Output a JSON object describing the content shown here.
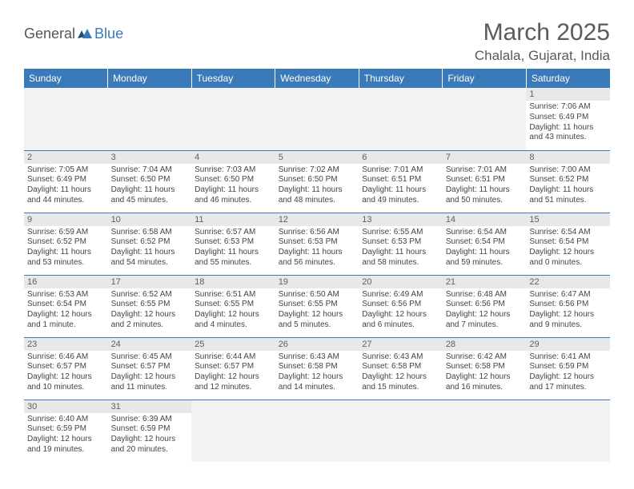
{
  "logo": {
    "general": "General",
    "blue": "Blue"
  },
  "title": "March 2025",
  "location": "Chalala, Gujarat, India",
  "day_header_bg": "#3a7ab8",
  "day_header_fg": "#ffffff",
  "cell_border_color": "#3a7ab8",
  "daynum_bg": "#e8e8e8",
  "empty_bg": "#f3f3f3",
  "days": [
    "Sunday",
    "Monday",
    "Tuesday",
    "Wednesday",
    "Thursday",
    "Friday",
    "Saturday"
  ],
  "weeks": [
    [
      null,
      null,
      null,
      null,
      null,
      null,
      {
        "n": "1",
        "sr": "Sunrise: 7:06 AM",
        "ss": "Sunset: 6:49 PM",
        "d1": "Daylight: 11 hours",
        "d2": "and 43 minutes."
      }
    ],
    [
      {
        "n": "2",
        "sr": "Sunrise: 7:05 AM",
        "ss": "Sunset: 6:49 PM",
        "d1": "Daylight: 11 hours",
        "d2": "and 44 minutes."
      },
      {
        "n": "3",
        "sr": "Sunrise: 7:04 AM",
        "ss": "Sunset: 6:50 PM",
        "d1": "Daylight: 11 hours",
        "d2": "and 45 minutes."
      },
      {
        "n": "4",
        "sr": "Sunrise: 7:03 AM",
        "ss": "Sunset: 6:50 PM",
        "d1": "Daylight: 11 hours",
        "d2": "and 46 minutes."
      },
      {
        "n": "5",
        "sr": "Sunrise: 7:02 AM",
        "ss": "Sunset: 6:50 PM",
        "d1": "Daylight: 11 hours",
        "d2": "and 48 minutes."
      },
      {
        "n": "6",
        "sr": "Sunrise: 7:01 AM",
        "ss": "Sunset: 6:51 PM",
        "d1": "Daylight: 11 hours",
        "d2": "and 49 minutes."
      },
      {
        "n": "7",
        "sr": "Sunrise: 7:01 AM",
        "ss": "Sunset: 6:51 PM",
        "d1": "Daylight: 11 hours",
        "d2": "and 50 minutes."
      },
      {
        "n": "8",
        "sr": "Sunrise: 7:00 AM",
        "ss": "Sunset: 6:52 PM",
        "d1": "Daylight: 11 hours",
        "d2": "and 51 minutes."
      }
    ],
    [
      {
        "n": "9",
        "sr": "Sunrise: 6:59 AM",
        "ss": "Sunset: 6:52 PM",
        "d1": "Daylight: 11 hours",
        "d2": "and 53 minutes."
      },
      {
        "n": "10",
        "sr": "Sunrise: 6:58 AM",
        "ss": "Sunset: 6:52 PM",
        "d1": "Daylight: 11 hours",
        "d2": "and 54 minutes."
      },
      {
        "n": "11",
        "sr": "Sunrise: 6:57 AM",
        "ss": "Sunset: 6:53 PM",
        "d1": "Daylight: 11 hours",
        "d2": "and 55 minutes."
      },
      {
        "n": "12",
        "sr": "Sunrise: 6:56 AM",
        "ss": "Sunset: 6:53 PM",
        "d1": "Daylight: 11 hours",
        "d2": "and 56 minutes."
      },
      {
        "n": "13",
        "sr": "Sunrise: 6:55 AM",
        "ss": "Sunset: 6:53 PM",
        "d1": "Daylight: 11 hours",
        "d2": "and 58 minutes."
      },
      {
        "n": "14",
        "sr": "Sunrise: 6:54 AM",
        "ss": "Sunset: 6:54 PM",
        "d1": "Daylight: 11 hours",
        "d2": "and 59 minutes."
      },
      {
        "n": "15",
        "sr": "Sunrise: 6:54 AM",
        "ss": "Sunset: 6:54 PM",
        "d1": "Daylight: 12 hours",
        "d2": "and 0 minutes."
      }
    ],
    [
      {
        "n": "16",
        "sr": "Sunrise: 6:53 AM",
        "ss": "Sunset: 6:54 PM",
        "d1": "Daylight: 12 hours",
        "d2": "and 1 minute."
      },
      {
        "n": "17",
        "sr": "Sunrise: 6:52 AM",
        "ss": "Sunset: 6:55 PM",
        "d1": "Daylight: 12 hours",
        "d2": "and 2 minutes."
      },
      {
        "n": "18",
        "sr": "Sunrise: 6:51 AM",
        "ss": "Sunset: 6:55 PM",
        "d1": "Daylight: 12 hours",
        "d2": "and 4 minutes."
      },
      {
        "n": "19",
        "sr": "Sunrise: 6:50 AM",
        "ss": "Sunset: 6:55 PM",
        "d1": "Daylight: 12 hours",
        "d2": "and 5 minutes."
      },
      {
        "n": "20",
        "sr": "Sunrise: 6:49 AM",
        "ss": "Sunset: 6:56 PM",
        "d1": "Daylight: 12 hours",
        "d2": "and 6 minutes."
      },
      {
        "n": "21",
        "sr": "Sunrise: 6:48 AM",
        "ss": "Sunset: 6:56 PM",
        "d1": "Daylight: 12 hours",
        "d2": "and 7 minutes."
      },
      {
        "n": "22",
        "sr": "Sunrise: 6:47 AM",
        "ss": "Sunset: 6:56 PM",
        "d1": "Daylight: 12 hours",
        "d2": "and 9 minutes."
      }
    ],
    [
      {
        "n": "23",
        "sr": "Sunrise: 6:46 AM",
        "ss": "Sunset: 6:57 PM",
        "d1": "Daylight: 12 hours",
        "d2": "and 10 minutes."
      },
      {
        "n": "24",
        "sr": "Sunrise: 6:45 AM",
        "ss": "Sunset: 6:57 PM",
        "d1": "Daylight: 12 hours",
        "d2": "and 11 minutes."
      },
      {
        "n": "25",
        "sr": "Sunrise: 6:44 AM",
        "ss": "Sunset: 6:57 PM",
        "d1": "Daylight: 12 hours",
        "d2": "and 12 minutes."
      },
      {
        "n": "26",
        "sr": "Sunrise: 6:43 AM",
        "ss": "Sunset: 6:58 PM",
        "d1": "Daylight: 12 hours",
        "d2": "and 14 minutes."
      },
      {
        "n": "27",
        "sr": "Sunrise: 6:43 AM",
        "ss": "Sunset: 6:58 PM",
        "d1": "Daylight: 12 hours",
        "d2": "and 15 minutes."
      },
      {
        "n": "28",
        "sr": "Sunrise: 6:42 AM",
        "ss": "Sunset: 6:58 PM",
        "d1": "Daylight: 12 hours",
        "d2": "and 16 minutes."
      },
      {
        "n": "29",
        "sr": "Sunrise: 6:41 AM",
        "ss": "Sunset: 6:59 PM",
        "d1": "Daylight: 12 hours",
        "d2": "and 17 minutes."
      }
    ],
    [
      {
        "n": "30",
        "sr": "Sunrise: 6:40 AM",
        "ss": "Sunset: 6:59 PM",
        "d1": "Daylight: 12 hours",
        "d2": "and 19 minutes."
      },
      {
        "n": "31",
        "sr": "Sunrise: 6:39 AM",
        "ss": "Sunset: 6:59 PM",
        "d1": "Daylight: 12 hours",
        "d2": "and 20 minutes."
      },
      null,
      null,
      null,
      null,
      null
    ]
  ]
}
